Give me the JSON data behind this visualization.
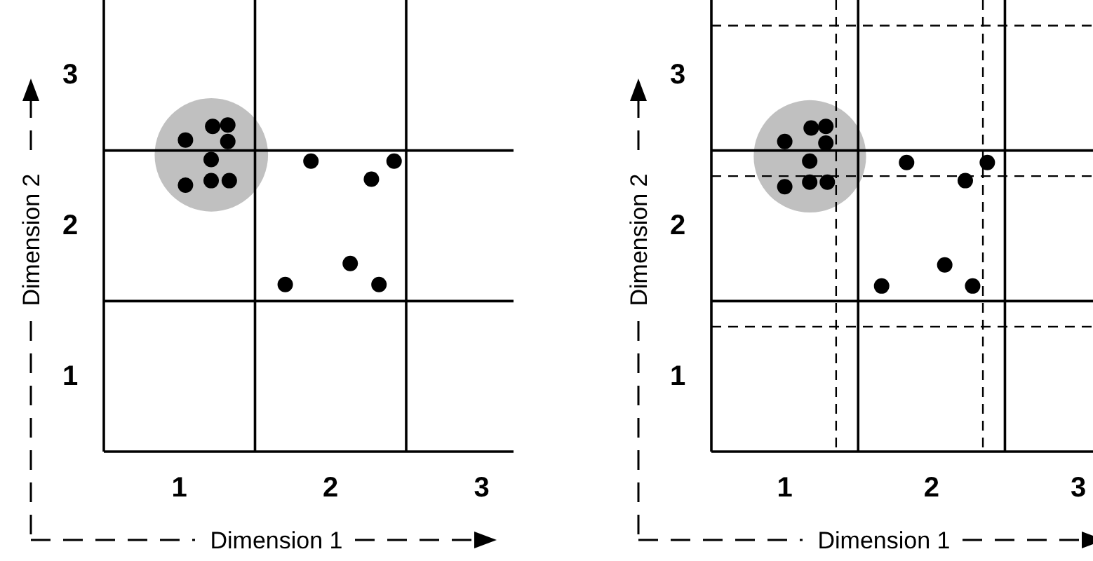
{
  "chart_data": [
    {
      "type": "scatter",
      "xlabel": "Dimension 1",
      "ylabel": "Dimension 2",
      "xlim": [
        0.5,
        3.21
      ],
      "ylim": [
        0.5,
        3.5
      ],
      "xticks": [
        1,
        2,
        3
      ],
      "yticks": [
        1,
        2,
        3
      ],
      "grid": false,
      "marker": "circle",
      "series": [
        {
          "color": "#000000",
          "x": [
            1.04,
            1.22,
            1.32,
            1.32,
            1.21,
            1.04,
            1.21,
            1.33
          ],
          "values": [
            2.57,
            2.66,
            2.67,
            2.56,
            2.44,
            2.27,
            2.3,
            2.3
          ]
        },
        {
          "color": "#000000",
          "x": [
            1.87,
            2.42,
            2.27,
            2.13,
            1.7,
            2.32
          ],
          "values": [
            2.43,
            2.43,
            2.31,
            1.75,
            1.61,
            1.61
          ]
        }
      ],
      "ref_lines": [
        {
          "axis": "x",
          "value": 1.5,
          "line_style": "solid"
        },
        {
          "axis": "x",
          "value": 2.5,
          "line_style": "solid"
        },
        {
          "axis": "y",
          "value": 1.5,
          "line_style": "solid"
        },
        {
          "axis": "y",
          "value": 2.5,
          "line_style": "solid"
        }
      ]
    },
    {
      "type": "scatter",
      "xlabel": "Dimension 1",
      "ylabel": "Dimension 2",
      "xlim": [
        0.5,
        3.1
      ],
      "ylim": [
        0.5,
        3.5
      ],
      "xticks": [
        1,
        2,
        3
      ],
      "yticks": [
        1,
        2,
        3
      ],
      "grid": false,
      "marker": "circle",
      "series": [
        {
          "color": "#000000",
          "x": [
            1.0,
            1.18,
            1.28,
            1.28,
            1.17,
            1.0,
            1.17,
            1.29
          ],
          "values": [
            2.56,
            2.65,
            2.66,
            2.55,
            2.43,
            2.26,
            2.29,
            2.29
          ]
        },
        {
          "color": "#000000",
          "x": [
            1.83,
            2.38,
            2.23,
            2.09,
            1.66,
            2.28
          ],
          "values": [
            2.42,
            2.42,
            2.3,
            1.74,
            1.6,
            1.6
          ]
        }
      ],
      "ref_lines": [
        {
          "axis": "x",
          "value": 1.5,
          "line_style": "solid"
        },
        {
          "axis": "x",
          "value": 2.5,
          "line_style": "solid"
        },
        {
          "axis": "y",
          "value": 1.5,
          "line_style": "solid"
        },
        {
          "axis": "y",
          "value": 2.5,
          "line_style": "solid"
        },
        {
          "axis": "x",
          "value": 1.35,
          "line_style": "dashed"
        },
        {
          "axis": "x",
          "value": 2.35,
          "line_style": "dashed"
        },
        {
          "axis": "y",
          "value": 1.33,
          "line_style": "dashed"
        },
        {
          "axis": "y",
          "value": 2.33,
          "line_style": "dashed"
        },
        {
          "axis": "y",
          "value": 3.33,
          "line_style": "dashed"
        }
      ]
    }
  ]
}
